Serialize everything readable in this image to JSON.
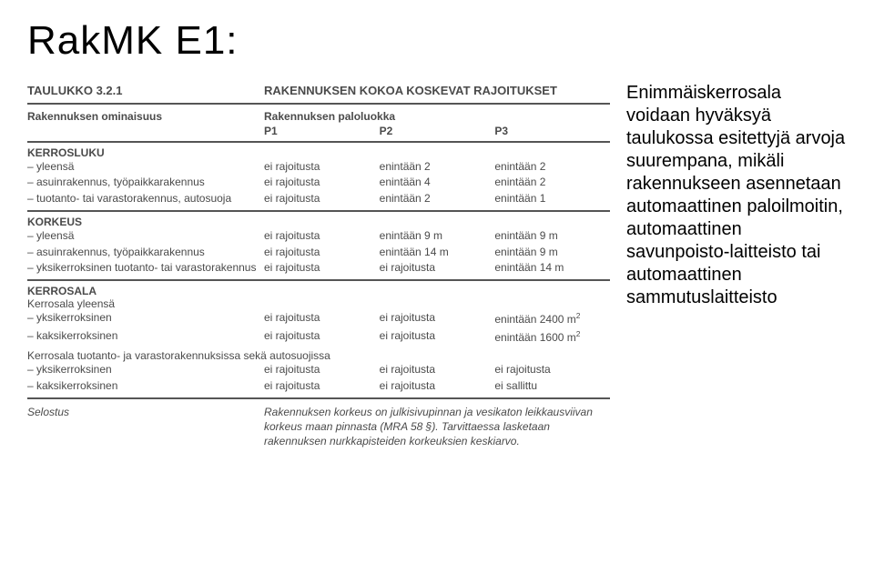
{
  "title": "RakMK E1:",
  "table": {
    "heading_left": "TAULUKKO 3.2.1",
    "heading_right": "RAKENNUKSEN KOKOA KOSKEVAT RAJOITUKSET",
    "subhead_left": "Rakennuksen ominaisuus",
    "subhead_right_top": "Rakennuksen paloluokka",
    "p_cols": [
      "P1",
      "P2",
      "P3"
    ],
    "sections": [
      {
        "title": "KERROSLUKU",
        "rows": [
          {
            "label": "– yleensä",
            "vals": [
              "ei rajoitusta",
              "enintään 2",
              "enintään 2"
            ]
          },
          {
            "label": "– asuinrakennus, työpaikkarakennus",
            "vals": [
              "ei rajoitusta",
              "enintään 4",
              "enintään 2"
            ]
          },
          {
            "label": "– tuotanto- tai varastorakennus, autosuoja",
            "vals": [
              "ei rajoitusta",
              "enintään 2",
              "enintään 1"
            ]
          }
        ]
      },
      {
        "title": "KORKEUS",
        "rows": [
          {
            "label": "– yleensä",
            "vals": [
              "ei rajoitusta",
              "enintään 9 m",
              "enintään 9 m"
            ]
          },
          {
            "label": "– asuinrakennus, työpaikkarakennus",
            "vals": [
              "ei rajoitusta",
              "enintään 14 m",
              "enintään 9 m"
            ]
          },
          {
            "label": "– yksikerroksinen tuotanto- tai varastorakennus",
            "vals": [
              "ei rajoitusta",
              "ei rajoitusta",
              "enintään 14 m"
            ]
          }
        ]
      },
      {
        "title": "KERROSALA",
        "subtitle": "Kerrosala yleensä",
        "rows": [
          {
            "label": "– yksikerroksinen",
            "vals": [
              "ei rajoitusta",
              "ei rajoitusta",
              "enintään 2400 m²"
            ]
          },
          {
            "label": "– kaksikerroksinen",
            "vals": [
              "ei rajoitusta",
              "ei rajoitusta",
              "enintään 1600 m²"
            ]
          }
        ],
        "subtitle2": "Kerrosala tuotanto- ja varastorakennuksissa sekä autosuojissa",
        "rows2": [
          {
            "label": "– yksikerroksinen",
            "vals": [
              "ei rajoitusta",
              "ei rajoitusta",
              "ei rajoitusta"
            ]
          },
          {
            "label": "– kaksikerroksinen",
            "vals": [
              "ei rajoitusta",
              "ei rajoitusta",
              "ei sallittu"
            ]
          }
        ]
      }
    ],
    "footer_label": "Selostus",
    "footer_text": "Rakennuksen korkeus on julkisivupinnan ja vesikaton leikkausviivan korkeus maan pinnasta (MRA 58 §). Tarvittaessa lasketaan rakennuksen nurkkapisteiden korkeuksien keskiarvo."
  },
  "sidebar": "Enimmäiskerrosala voidaan hyväksyä taulukossa esitettyjä arvoja suurempana, mikäli rakennukseen asennetaan automaattinen paloilmoitin, automaattinen savunpoisto-laitteisto tai automaattinen sammutuslaitteisto",
  "colors": {
    "text": "#000000",
    "table_text": "#4a4a4a",
    "border": "#555555",
    "bg": "#ffffff"
  },
  "fontsize": {
    "title": 44,
    "sidebar": 20,
    "table": 12
  }
}
